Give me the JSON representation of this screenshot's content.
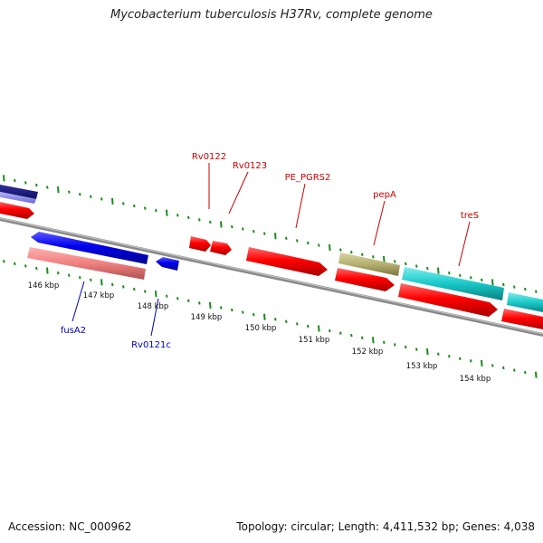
{
  "title": "Mycobacterium tuberculosis H37Rv, complete genome",
  "footer": {
    "accession": "Accession: NC_000962",
    "summary": "Topology: circular; Length: 4,411,532 bp; Genes: 4,038"
  },
  "ticks": [
    "146 kbp",
    "147 kbp",
    "148 kbp",
    "149 kbp",
    "150 kbp",
    "151 kbp",
    "152 kbp",
    "153 kbp",
    "154 kbp"
  ],
  "labels": {
    "forward": [
      "Rv0122",
      "Rv0123",
      "PE_PGRS2",
      "pepA",
      "treS"
    ],
    "reverse": [
      "fusA2",
      "Rv0121c"
    ]
  },
  "colors": {
    "forward_label": "#cc0000",
    "reverse_label": "#0000bb",
    "cds": "#ff0000",
    "gene_reverse": "#0000ee",
    "rna_pink": "#f08080",
    "olive": "#b5b070",
    "cyan": "#19c8c8",
    "tick": "#1a8c1a",
    "backbone": "#808080"
  }
}
